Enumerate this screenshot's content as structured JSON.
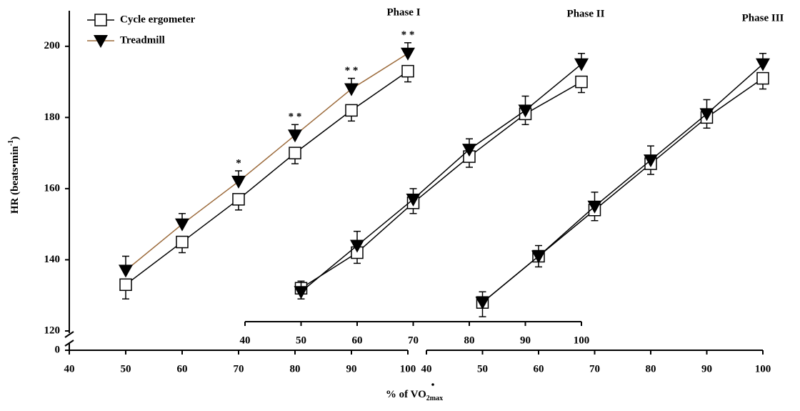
{
  "chart_data": {
    "type": "line",
    "ylabel": [
      "HR (beats•min",
      "-1",
      ")"
    ],
    "xlabel": [
      "% of ",
      "VO",
      "2max"
    ],
    "ylim": [
      120,
      210
    ],
    "yticks": [
      120,
      140,
      160,
      180,
      200
    ],
    "ybreak_tick": 0,
    "legend": [
      "Cycle ergometer",
      "Treadmill"
    ],
    "panels": [
      {
        "title": "Phase I",
        "xlim": [
          40,
          100
        ],
        "xticks": [
          40,
          50,
          60,
          70,
          80,
          90,
          100
        ],
        "x": [
          50,
          60,
          70,
          80,
          90,
          100
        ],
        "series": [
          {
            "color": "#000000",
            "values": [
              133,
              145,
              157,
              170,
              182,
              193
            ],
            "errors": [
              4,
              3,
              3,
              3,
              3,
              3
            ]
          },
          {
            "color": "#9c6b3c",
            "values": [
              137,
              150,
              162,
              175,
              188,
              198
            ],
            "errors": [
              4,
              3,
              3,
              3,
              3,
              3
            ]
          }
        ],
        "annotations": [
          {
            "x": 70,
            "text": "*"
          },
          {
            "x": 80,
            "text": "* *"
          },
          {
            "x": 90,
            "text": "* *"
          },
          {
            "x": 100,
            "text": "* *"
          }
        ]
      },
      {
        "title": "Phase II",
        "xlim": [
          40,
          100
        ],
        "xticks": [
          40,
          50,
          60,
          70,
          80,
          90,
          100
        ],
        "x": [
          50,
          60,
          70,
          80,
          90,
          100
        ],
        "series": [
          {
            "color": "#000000",
            "values": [
              132,
              142,
              156,
              169,
              181,
              190
            ],
            "errors": [
              3,
              3,
              3,
              3,
              3,
              3
            ]
          },
          {
            "color": "#000000",
            "values": [
              131,
              144,
              157,
              171,
              182,
              195
            ],
            "errors": [
              3,
              4,
              3,
              3,
              4,
              3
            ]
          }
        ]
      },
      {
        "title": "Phase III",
        "xlim": [
          40,
          100
        ],
        "xticks": [
          40,
          50,
          60,
          70,
          80,
          90,
          100
        ],
        "x": [
          50,
          60,
          70,
          80,
          90,
          100
        ],
        "series": [
          {
            "color": "#000000",
            "values": [
              128,
              141,
              154,
              167,
              180,
              191
            ],
            "errors": [
              4,
              3,
              3,
              3,
              3,
              3
            ]
          },
          {
            "color": "#000000",
            "values": [
              128,
              141,
              155,
              168,
              181,
              195
            ],
            "errors": [
              3,
              3,
              4,
              4,
              4,
              3
            ]
          }
        ]
      }
    ]
  }
}
